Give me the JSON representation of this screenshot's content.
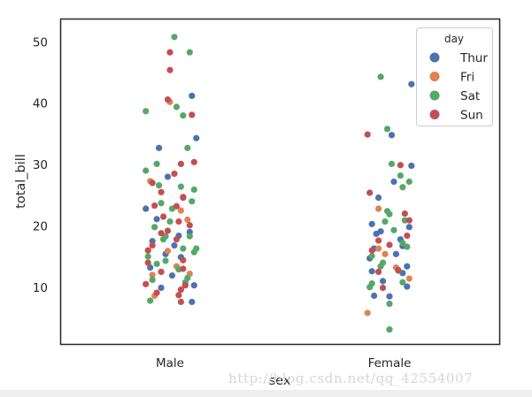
{
  "chart_data": {
    "type": "scatter",
    "subtype": "strip",
    "title": "",
    "xlabel": "sex",
    "ylabel": "total_bill",
    "categories": [
      "Male",
      "Female"
    ],
    "ylim": [
      0.6,
      53.8
    ],
    "yticks": [
      10,
      20,
      30,
      40,
      50
    ],
    "grid": false,
    "legend": {
      "title": "day",
      "placement": "top-right"
    },
    "series": [
      {
        "name": "Thur",
        "color": "#4c72b0",
        "points": [
          {
            "category": "Male",
            "jitter": 0.1,
            "value": 41.2
          },
          {
            "category": "Male",
            "jitter": -0.05,
            "value": 32.7
          },
          {
            "category": "Male",
            "jitter": 0.12,
            "value": 34.3
          },
          {
            "category": "Male",
            "jitter": -0.11,
            "value": 22.8
          },
          {
            "category": "Male",
            "jitter": 0.09,
            "value": 19.0
          },
          {
            "category": "Male",
            "jitter": -0.08,
            "value": 17.5
          },
          {
            "category": "Male",
            "jitter": 0.02,
            "value": 16.8
          },
          {
            "category": "Male",
            "jitter": -0.02,
            "value": 15.4
          },
          {
            "category": "Male",
            "jitter": 0.05,
            "value": 14.9
          },
          {
            "category": "Male",
            "jitter": -0.09,
            "value": 13.2
          },
          {
            "category": "Male",
            "jitter": 0.01,
            "value": 11.9
          },
          {
            "category": "Male",
            "jitter": 0.11,
            "value": 10.3
          },
          {
            "category": "Male",
            "jitter": -0.04,
            "value": 9.9
          },
          {
            "category": "Male",
            "jitter": 0.1,
            "value": 7.6
          },
          {
            "category": "Male",
            "jitter": 0.06,
            "value": 24.6
          },
          {
            "category": "Male",
            "jitter": -0.06,
            "value": 21.1
          },
          {
            "category": "Male",
            "jitter": -0.01,
            "value": 28.0
          },
          {
            "category": "Male",
            "jitter": 0.04,
            "value": 18.4
          },
          {
            "category": "Female",
            "jitter": 0.01,
            "value": 34.8
          },
          {
            "category": "Female",
            "jitter": 0.1,
            "value": 43.1
          },
          {
            "category": "Female",
            "jitter": 0.1,
            "value": 29.8
          },
          {
            "category": "Female",
            "jitter": 0.02,
            "value": 27.2
          },
          {
            "category": "Female",
            "jitter": -0.05,
            "value": 24.6
          },
          {
            "category": "Female",
            "jitter": -0.08,
            "value": 20.3
          },
          {
            "category": "Female",
            "jitter": 0.09,
            "value": 19.8
          },
          {
            "category": "Female",
            "jitter": -0.06,
            "value": 18.7
          },
          {
            "category": "Female",
            "jitter": 0.05,
            "value": 17.8
          },
          {
            "category": "Female",
            "jitter": -0.07,
            "value": 16.3
          },
          {
            "category": "Female",
            "jitter": 0.03,
            "value": 15.4
          },
          {
            "category": "Female",
            "jitter": -0.09,
            "value": 14.7
          },
          {
            "category": "Female",
            "jitter": 0.08,
            "value": 13.4
          },
          {
            "category": "Female",
            "jitter": -0.08,
            "value": 12.6
          },
          {
            "category": "Female",
            "jitter": 0.06,
            "value": 12.3
          },
          {
            "category": "Female",
            "jitter": -0.03,
            "value": 11.0
          },
          {
            "category": "Female",
            "jitter": 0.08,
            "value": 10.1
          },
          {
            "category": "Female",
            "jitter": -0.07,
            "value": 8.6
          },
          {
            "category": "Female",
            "jitter": 0.0,
            "value": 8.5
          },
          {
            "category": "Female",
            "jitter": 0.06,
            "value": 16.7
          },
          {
            "category": "Female",
            "jitter": -0.04,
            "value": 19.1
          }
        ]
      },
      {
        "name": "Fri",
        "color": "#dd8452",
        "points": [
          {
            "category": "Male",
            "jitter": 0.0,
            "value": 40.2
          },
          {
            "category": "Male",
            "jitter": -0.09,
            "value": 27.3
          },
          {
            "category": "Male",
            "jitter": 0.05,
            "value": 22.5
          },
          {
            "category": "Male",
            "jitter": -0.01,
            "value": 15.9
          },
          {
            "category": "Male",
            "jitter": 0.03,
            "value": 13.4
          },
          {
            "category": "Male",
            "jitter": -0.08,
            "value": 12.0
          },
          {
            "category": "Male",
            "jitter": 0.09,
            "value": 12.2
          },
          {
            "category": "Male",
            "jitter": -0.07,
            "value": 8.6
          },
          {
            "category": "Male",
            "jitter": 0.08,
            "value": 21.0
          },
          {
            "category": "Female",
            "jitter": -0.05,
            "value": 22.8
          },
          {
            "category": "Female",
            "jitter": 0.09,
            "value": 11.4
          },
          {
            "category": "Female",
            "jitter": -0.1,
            "value": 5.8
          },
          {
            "category": "Female",
            "jitter": -0.05,
            "value": 16.3
          },
          {
            "category": "Female",
            "jitter": 0.03,
            "value": 13.2
          },
          {
            "category": "Female",
            "jitter": -0.02,
            "value": 15.4
          }
        ]
      },
      {
        "name": "Sat",
        "color": "#55a868",
        "points": [
          {
            "category": "Male",
            "jitter": 0.02,
            "value": 50.8
          },
          {
            "category": "Male",
            "jitter": 0.09,
            "value": 48.3
          },
          {
            "category": "Male",
            "jitter": -0.11,
            "value": 38.7
          },
          {
            "category": "Male",
            "jitter": 0.03,
            "value": 39.4
          },
          {
            "category": "Male",
            "jitter": 0.06,
            "value": 38.0
          },
          {
            "category": "Male",
            "jitter": -0.06,
            "value": 30.1
          },
          {
            "category": "Male",
            "jitter": -0.11,
            "value": 29.0
          },
          {
            "category": "Male",
            "jitter": 0.08,
            "value": 32.7
          },
          {
            "category": "Male",
            "jitter": 0.11,
            "value": 25.9
          },
          {
            "category": "Male",
            "jitter": 0.1,
            "value": 24.0
          },
          {
            "category": "Male",
            "jitter": -0.05,
            "value": 26.6
          },
          {
            "category": "Male",
            "jitter": 0.0,
            "value": 20.7
          },
          {
            "category": "Male",
            "jitter": -0.07,
            "value": 19.8
          },
          {
            "category": "Male",
            "jitter": 0.09,
            "value": 18.3
          },
          {
            "category": "Male",
            "jitter": -0.03,
            "value": 17.8
          },
          {
            "category": "Male",
            "jitter": 0.06,
            "value": 16.3
          },
          {
            "category": "Male",
            "jitter": -0.1,
            "value": 15.0
          },
          {
            "category": "Male",
            "jitter": 0.11,
            "value": 15.7
          },
          {
            "category": "Male",
            "jitter": -0.02,
            "value": 14.3
          },
          {
            "category": "Male",
            "jitter": -0.06,
            "value": 13.8
          },
          {
            "category": "Male",
            "jitter": 0.04,
            "value": 12.9
          },
          {
            "category": "Male",
            "jitter": -0.08,
            "value": 11.2
          },
          {
            "category": "Male",
            "jitter": 0.07,
            "value": 10.8
          },
          {
            "category": "Male",
            "jitter": -0.09,
            "value": 7.8
          },
          {
            "category": "Male",
            "jitter": 0.05,
            "value": 26.4
          },
          {
            "category": "Male",
            "jitter": 0.12,
            "value": 16.3
          },
          {
            "category": "Male",
            "jitter": -0.04,
            "value": 23.7
          },
          {
            "category": "Male",
            "jitter": -0.02,
            "value": 18.3
          },
          {
            "category": "Male",
            "jitter": 0.01,
            "value": 22.8
          },
          {
            "category": "Male",
            "jitter": 0.08,
            "value": 11.5
          },
          {
            "category": "Female",
            "jitter": -0.04,
            "value": 44.3
          },
          {
            "category": "Female",
            "jitter": -0.01,
            "value": 35.8
          },
          {
            "category": "Female",
            "jitter": 0.01,
            "value": 30.1
          },
          {
            "category": "Female",
            "jitter": 0.05,
            "value": 28.2
          },
          {
            "category": "Female",
            "jitter": 0.09,
            "value": 27.2
          },
          {
            "category": "Female",
            "jitter": 0.06,
            "value": 26.3
          },
          {
            "category": "Female",
            "jitter": -0.01,
            "value": 22.4
          },
          {
            "category": "Female",
            "jitter": 0.0,
            "value": 21.9
          },
          {
            "category": "Female",
            "jitter": 0.07,
            "value": 20.9
          },
          {
            "category": "Female",
            "jitter": -0.02,
            "value": 20.7
          },
          {
            "category": "Female",
            "jitter": 0.02,
            "value": 19.3
          },
          {
            "category": "Female",
            "jitter": 0.06,
            "value": 17.2
          },
          {
            "category": "Female",
            "jitter": -0.08,
            "value": 15.1
          },
          {
            "category": "Female",
            "jitter": -0.04,
            "value": 13.4
          },
          {
            "category": "Female",
            "jitter": 0.04,
            "value": 12.7
          },
          {
            "category": "Female",
            "jitter": 0.06,
            "value": 10.8
          },
          {
            "category": "Female",
            "jitter": -0.08,
            "value": 10.6
          },
          {
            "category": "Female",
            "jitter": -0.09,
            "value": 10.0
          },
          {
            "category": "Female",
            "jitter": 0.0,
            "value": 7.3
          },
          {
            "category": "Female",
            "jitter": 0.0,
            "value": 3.1
          },
          {
            "category": "Female",
            "jitter": -0.03,
            "value": 14.0
          },
          {
            "category": "Female",
            "jitter": 0.08,
            "value": 16.6
          }
        ]
      },
      {
        "name": "Sun",
        "color": "#c44e52",
        "points": [
          {
            "category": "Male",
            "jitter": 0.0,
            "value": 48.3
          },
          {
            "category": "Male",
            "jitter": 0.0,
            "value": 45.4
          },
          {
            "category": "Male",
            "jitter": -0.01,
            "value": 40.6
          },
          {
            "category": "Male",
            "jitter": 0.1,
            "value": 38.1
          },
          {
            "category": "Male",
            "jitter": 0.11,
            "value": 30.4
          },
          {
            "category": "Male",
            "jitter": 0.05,
            "value": 30.1
          },
          {
            "category": "Male",
            "jitter": -0.08,
            "value": 27.0
          },
          {
            "category": "Male",
            "jitter": 0.06,
            "value": 24.7
          },
          {
            "category": "Male",
            "jitter": -0.04,
            "value": 25.5
          },
          {
            "category": "Male",
            "jitter": 0.03,
            "value": 23.2
          },
          {
            "category": "Male",
            "jitter": -0.07,
            "value": 23.3
          },
          {
            "category": "Male",
            "jitter": -0.03,
            "value": 21.5
          },
          {
            "category": "Male",
            "jitter": 0.04,
            "value": 20.7
          },
          {
            "category": "Male",
            "jitter": 0.09,
            "value": 20.1
          },
          {
            "category": "Male",
            "jitter": -0.04,
            "value": 18.8
          },
          {
            "category": "Male",
            "jitter": 0.03,
            "value": 17.8
          },
          {
            "category": "Male",
            "jitter": -0.08,
            "value": 16.8
          },
          {
            "category": "Male",
            "jitter": -0.1,
            "value": 16.0
          },
          {
            "category": "Male",
            "jitter": 0.06,
            "value": 14.4
          },
          {
            "category": "Male",
            "jitter": -0.1,
            "value": 14.0
          },
          {
            "category": "Male",
            "jitter": 0.06,
            "value": 13.0
          },
          {
            "category": "Male",
            "jitter": -0.04,
            "value": 12.5
          },
          {
            "category": "Male",
            "jitter": 0.07,
            "value": 10.3
          },
          {
            "category": "Male",
            "jitter": -0.11,
            "value": 10.5
          },
          {
            "category": "Male",
            "jitter": 0.05,
            "value": 9.6
          },
          {
            "category": "Male",
            "jitter": 0.04,
            "value": 8.7
          },
          {
            "category": "Male",
            "jitter": 0.05,
            "value": 7.6
          },
          {
            "category": "Male",
            "jitter": 0.02,
            "value": 28.5
          },
          {
            "category": "Male",
            "jitter": -0.01,
            "value": 19.2
          },
          {
            "category": "Male",
            "jitter": -0.06,
            "value": 9.1
          },
          {
            "category": "Female",
            "jitter": -0.1,
            "value": 34.9
          },
          {
            "category": "Female",
            "jitter": 0.05,
            "value": 29.9
          },
          {
            "category": "Female",
            "jitter": -0.09,
            "value": 25.4
          },
          {
            "category": "Female",
            "jitter": 0.09,
            "value": 20.9
          },
          {
            "category": "Female",
            "jitter": 0.08,
            "value": 18.4
          },
          {
            "category": "Female",
            "jitter": -0.05,
            "value": 17.6
          },
          {
            "category": "Female",
            "jitter": 0.0,
            "value": 16.9
          },
          {
            "category": "Female",
            "jitter": -0.08,
            "value": 16.0
          },
          {
            "category": "Female",
            "jitter": -0.05,
            "value": 12.5
          },
          {
            "category": "Female",
            "jitter": 0.04,
            "value": 12.8
          },
          {
            "category": "Female",
            "jitter": -0.03,
            "value": 9.9
          },
          {
            "category": "Female",
            "jitter": 0.07,
            "value": 22.0
          }
        ]
      }
    ]
  },
  "watermark": "http://blog.csdn.net/qq_42554007"
}
